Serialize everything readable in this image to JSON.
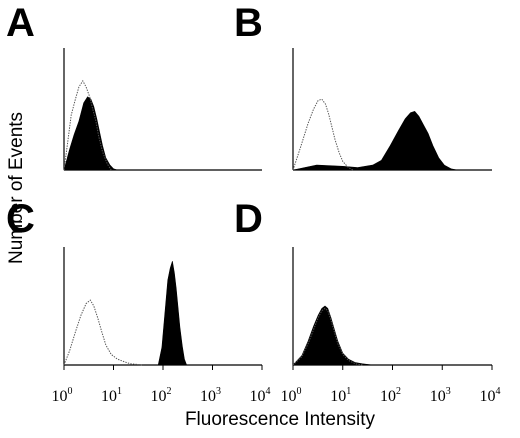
{
  "figure": {
    "y_axis_title": "Number of Events",
    "x_axis_title": "Fluorescence Intensity"
  },
  "colors": {
    "filled": "#000000",
    "control": "#555555",
    "background": "#ffffff"
  },
  "chart_data": [
    {
      "panel": "A",
      "type": "area",
      "x_scale": "log",
      "xlim": [
        1,
        10000
      ],
      "ylim": [
        0,
        1
      ],
      "x_tick_labels": [],
      "series": [
        {
          "style": "filled",
          "x": [
            1.0,
            1.3,
            1.6,
            2.0,
            2.5,
            3.0,
            3.5,
            4.0,
            4.6,
            5.3,
            6.0,
            7.0,
            8.5,
            10.0,
            12.0
          ],
          "y": [
            0.0,
            0.17,
            0.29,
            0.4,
            0.55,
            0.6,
            0.58,
            0.52,
            0.42,
            0.3,
            0.2,
            0.1,
            0.04,
            0.01,
            0.0
          ]
        },
        {
          "style": "control",
          "x": [
            1.0,
            1.2,
            1.4,
            1.7,
            2.0,
            2.4,
            2.8,
            3.3,
            3.8,
            4.4,
            5.0,
            6.0,
            7.5,
            9.0
          ],
          "y": [
            0.0,
            0.24,
            0.45,
            0.58,
            0.68,
            0.73,
            0.68,
            0.6,
            0.5,
            0.4,
            0.28,
            0.15,
            0.05,
            0.0
          ]
        }
      ]
    },
    {
      "panel": "B",
      "type": "area",
      "x_scale": "log",
      "xlim": [
        1,
        10000
      ],
      "ylim": [
        0,
        1
      ],
      "x_tick_labels": [],
      "series": [
        {
          "style": "filled",
          "x": [
            1.0,
            3.0,
            10.0,
            20.0,
            40.0,
            60.0,
            90.0,
            130.0,
            180.0,
            230.0,
            280.0,
            340.0,
            420.0,
            520.0,
            650.0,
            850.0,
            1100.0,
            1500.0,
            2000.0
          ],
          "y": [
            0.0,
            0.04,
            0.03,
            0.02,
            0.04,
            0.08,
            0.2,
            0.32,
            0.42,
            0.47,
            0.48,
            0.44,
            0.37,
            0.3,
            0.2,
            0.1,
            0.04,
            0.01,
            0.0
          ]
        },
        {
          "style": "control",
          "x": [
            1.0,
            1.4,
            2.0,
            2.6,
            3.2,
            3.8,
            4.5,
            5.2,
            6.0,
            7.0,
            8.5,
            10.0,
            13.0,
            16.0
          ],
          "y": [
            0.0,
            0.18,
            0.38,
            0.5,
            0.57,
            0.58,
            0.54,
            0.46,
            0.36,
            0.25,
            0.14,
            0.07,
            0.02,
            0.0
          ]
        }
      ]
    },
    {
      "panel": "C",
      "type": "area",
      "x_scale": "log",
      "xlim": [
        1,
        10000
      ],
      "ylim": [
        0,
        1
      ],
      "x_tick_labels": [
        "10^0",
        "10^1",
        "10^2",
        "10^3",
        "10^4"
      ],
      "series": [
        {
          "style": "filled",
          "x": [
            80.0,
            95.0,
            110.0,
            125.0,
            140.0,
            155.0,
            170.0,
            185.0,
            200.0,
            220.0,
            245.0,
            270.0,
            300.0
          ],
          "y": [
            0.0,
            0.15,
            0.45,
            0.72,
            0.82,
            0.88,
            0.78,
            0.65,
            0.5,
            0.32,
            0.16,
            0.05,
            0.0
          ]
        },
        {
          "style": "control",
          "x": [
            1.0,
            1.3,
            1.7,
            2.2,
            2.8,
            3.4,
            4.0,
            4.8,
            5.8,
            7.0,
            9.0,
            12.0,
            16.0,
            22.0,
            30.0,
            40.0
          ],
          "y": [
            0.0,
            0.12,
            0.28,
            0.42,
            0.52,
            0.55,
            0.5,
            0.4,
            0.28,
            0.17,
            0.09,
            0.05,
            0.03,
            0.01,
            0.005,
            0.0
          ]
        }
      ]
    },
    {
      "panel": "D",
      "type": "area",
      "x_scale": "log",
      "xlim": [
        1,
        10000
      ],
      "ylim": [
        0,
        1
      ],
      "x_tick_labels": [
        "10^0",
        "10^1",
        "10^2",
        "10^3",
        "10^4"
      ],
      "series": [
        {
          "style": "filled",
          "x": [
            1.0,
            1.5,
            2.0,
            2.6,
            3.2,
            3.8,
            4.4,
            5.0,
            5.8,
            6.8,
            8.0,
            10.0,
            13.0,
            18.0,
            25.0,
            40.0
          ],
          "y": [
            0.0,
            0.08,
            0.2,
            0.33,
            0.42,
            0.48,
            0.5,
            0.48,
            0.4,
            0.3,
            0.2,
            0.1,
            0.05,
            0.02,
            0.01,
            0.0
          ]
        },
        {
          "style": "control",
          "x": [
            1.0,
            1.5,
            2.0,
            2.6,
            3.2,
            3.8,
            4.4,
            5.0,
            5.8,
            6.8,
            8.0,
            10.0,
            13.0,
            18.0,
            25.0
          ],
          "y": [
            0.0,
            0.07,
            0.18,
            0.3,
            0.4,
            0.46,
            0.48,
            0.46,
            0.38,
            0.28,
            0.18,
            0.09,
            0.04,
            0.01,
            0.0
          ]
        }
      ]
    }
  ]
}
